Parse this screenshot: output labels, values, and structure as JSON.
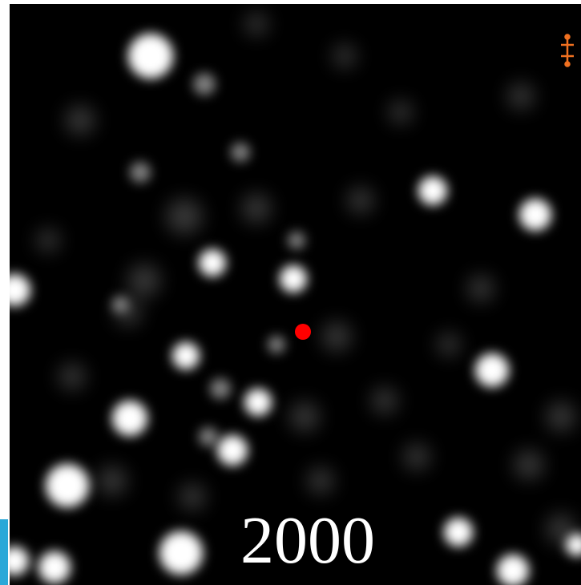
{
  "image": {
    "caption": "2000"
  }
}
